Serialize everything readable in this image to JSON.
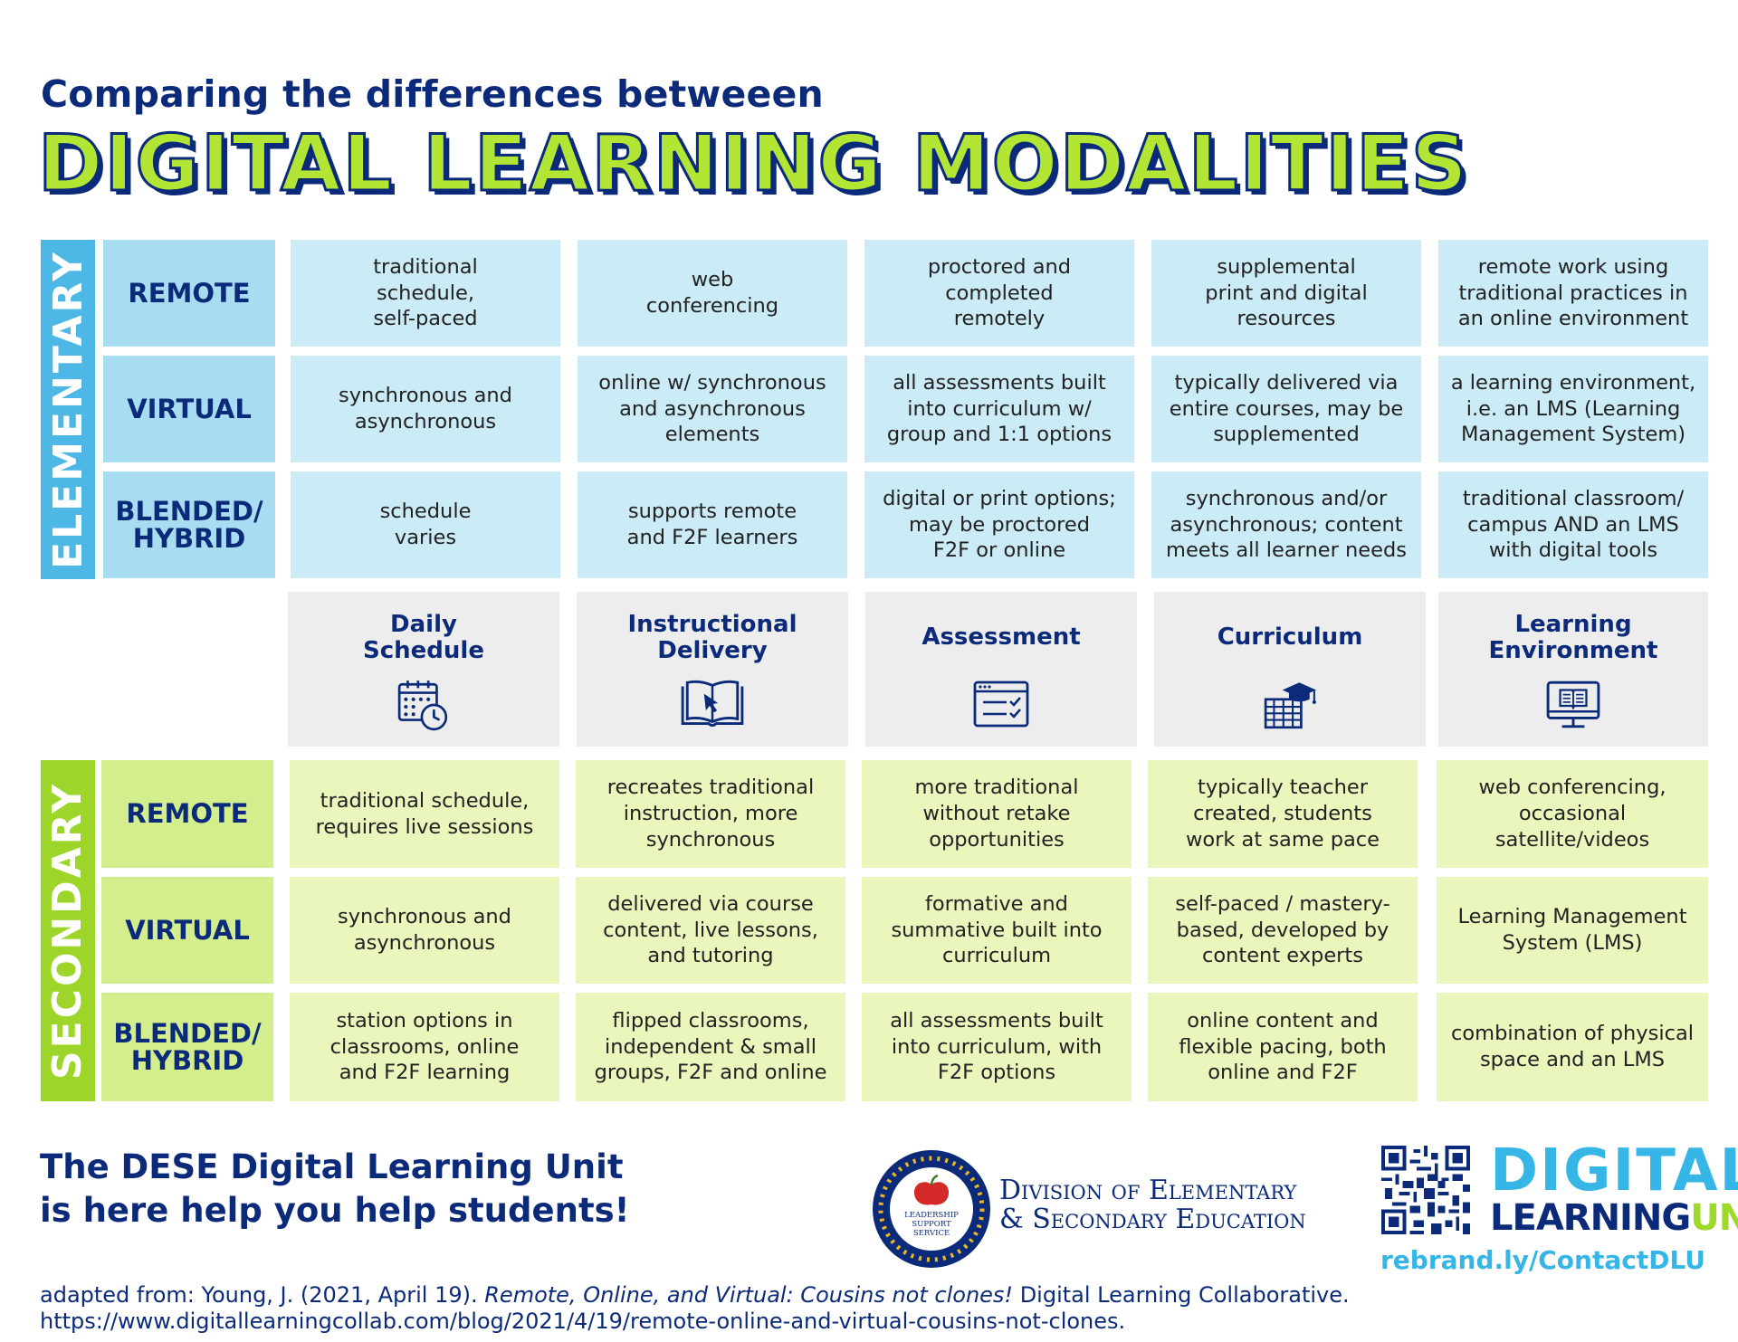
{
  "header": {
    "subtitle": "Comparing the differences betweeen",
    "title": "DIGITAL LEARNING MODALITIES"
  },
  "elementary": {
    "label": "ELEMENTARY",
    "color": "#4db8e6",
    "rows": [
      {
        "label": "REMOTE",
        "cells": [
          "traditional\nschedule,\nself-paced",
          "web\nconferencing",
          "proctored and\ncompleted\nremotely",
          "supplemental\nprint and digital\nresources",
          "remote work using\ntraditional practices in\nan online environment"
        ]
      },
      {
        "label": "VIRTUAL",
        "cells": [
          "synchronous and\nasynchronous",
          "online w/ synchronous\nand asynchronous\nelements",
          "all assessments built\ninto curriculum w/\ngroup and 1:1 options",
          "typically delivered via\nentire courses, may be\nsupplemented",
          "a learning environment,\ni.e. an LMS (Learning\nManagement System)"
        ]
      },
      {
        "label": "BLENDED/\nHYBRID",
        "cells": [
          "schedule\nvaries",
          "supports remote\nand F2F learners",
          "digital or print options;\nmay be proctored\nF2F or online",
          "synchronous and/or\nasynchronous; content\nmeets all learner needs",
          "traditional classroom/\ncampus AND an LMS\nwith digital tools"
        ]
      }
    ]
  },
  "categories": [
    {
      "title": "Daily\nSchedule",
      "icon": "calendar-clock-icon"
    },
    {
      "title": "Instructional\nDelivery",
      "icon": "open-book-cursor-icon"
    },
    {
      "title": "Assessment",
      "icon": "checklist-window-icon"
    },
    {
      "title": "Curriculum",
      "icon": "graduation-cap-grid-icon"
    },
    {
      "title": "Learning\nEnvironment",
      "icon": "monitor-book-icon"
    }
  ],
  "secondary": {
    "label": "SECONDARY",
    "color": "#9dd52a",
    "rows": [
      {
        "label": "REMOTE",
        "cells": [
          "traditional schedule,\nrequires live sessions",
          "recreates traditional\ninstruction, more\nsynchronous",
          "more traditional\nwithout retake\nopportunities",
          "typically teacher\ncreated, students\nwork at same pace",
          "web conferencing,\noccasional\nsatellite/videos"
        ]
      },
      {
        "label": "VIRTUAL",
        "cells": [
          "synchronous and\nasynchronous",
          "delivered via course\ncontent, live lessons,\nand tutoring",
          "formative and\nsummative built into\ncurriculum",
          "self-paced / mastery-\nbased, developed by\ncontent experts",
          "Learning Management\nSystem (LMS)"
        ]
      },
      {
        "label": "BLENDED/\nHYBRID",
        "cells": [
          "station options in\nclassrooms, online\nand F2F learning",
          "flipped classrooms,\nindependent & small\ngroups, F2F and online",
          "all assessments built\ninto curriculum, with\nF2F options",
          "online content and\nflexible pacing, both\nonline and F2F",
          "combination of physical\nspace and an LMS"
        ]
      }
    ]
  },
  "footer": {
    "message": "The DESE Digital Learning Unit\nis here help you help students!",
    "seal_text": "LEADERSHIP SUPPORT SERVICE",
    "division": "Division of Elementary\n& Secondary Education",
    "dlu_line1": "DIGITAL",
    "dlu_line2a": "LEARNING",
    "dlu_line2b": "UNIT",
    "link": "rebrand.ly/ContactDLU",
    "citation_prefix": "adapted from: Young, J. (2021, April 19). ",
    "citation_title": "Remote, Online, and Virtual: Cousins not clones!",
    "citation_suffix": " Digital Learning Collaborative. https://www.digitallearningcollab.com/blog/2021/4/19/remote-online-and-virtual-cousins-not-clones."
  },
  "colors": {
    "navy": "#0b2b7a",
    "lime": "#b3e535",
    "elem_label_bg": "#a8dcf0",
    "elem_cell_bg": "#cbebf7",
    "sec_label_bg": "#d4ee8e",
    "sec_cell_bg": "#e9f7bd",
    "category_bg": "#ededed"
  }
}
